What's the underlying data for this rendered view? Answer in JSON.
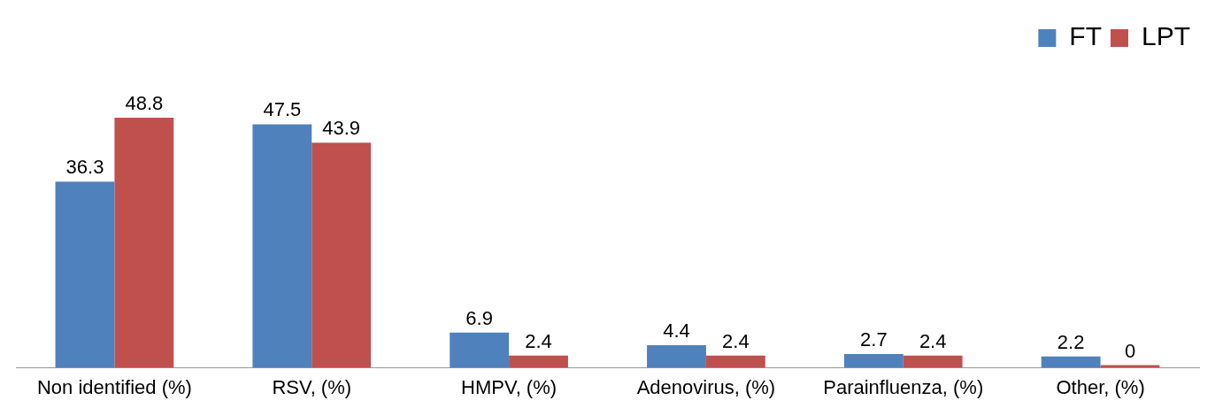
{
  "chart_data": {
    "type": "bar",
    "categories": [
      "Non identified (%)",
      "RSV, (%)",
      "HMPV, (%)",
      "Adenovirus, (%)",
      "Parainfluenza, (%)",
      "Other, (%)"
    ],
    "series": [
      {
        "name": "FT",
        "color": "#4f81bd",
        "values": [
          36.3,
          47.5,
          6.9,
          4.4,
          2.7,
          2.2
        ]
      },
      {
        "name": "LPT",
        "color": "#c0504d",
        "values": [
          48.8,
          43.9,
          2.4,
          2.4,
          2.4,
          0
        ]
      }
    ],
    "data_labels": true,
    "legend": "top right",
    "grid": false
  }
}
